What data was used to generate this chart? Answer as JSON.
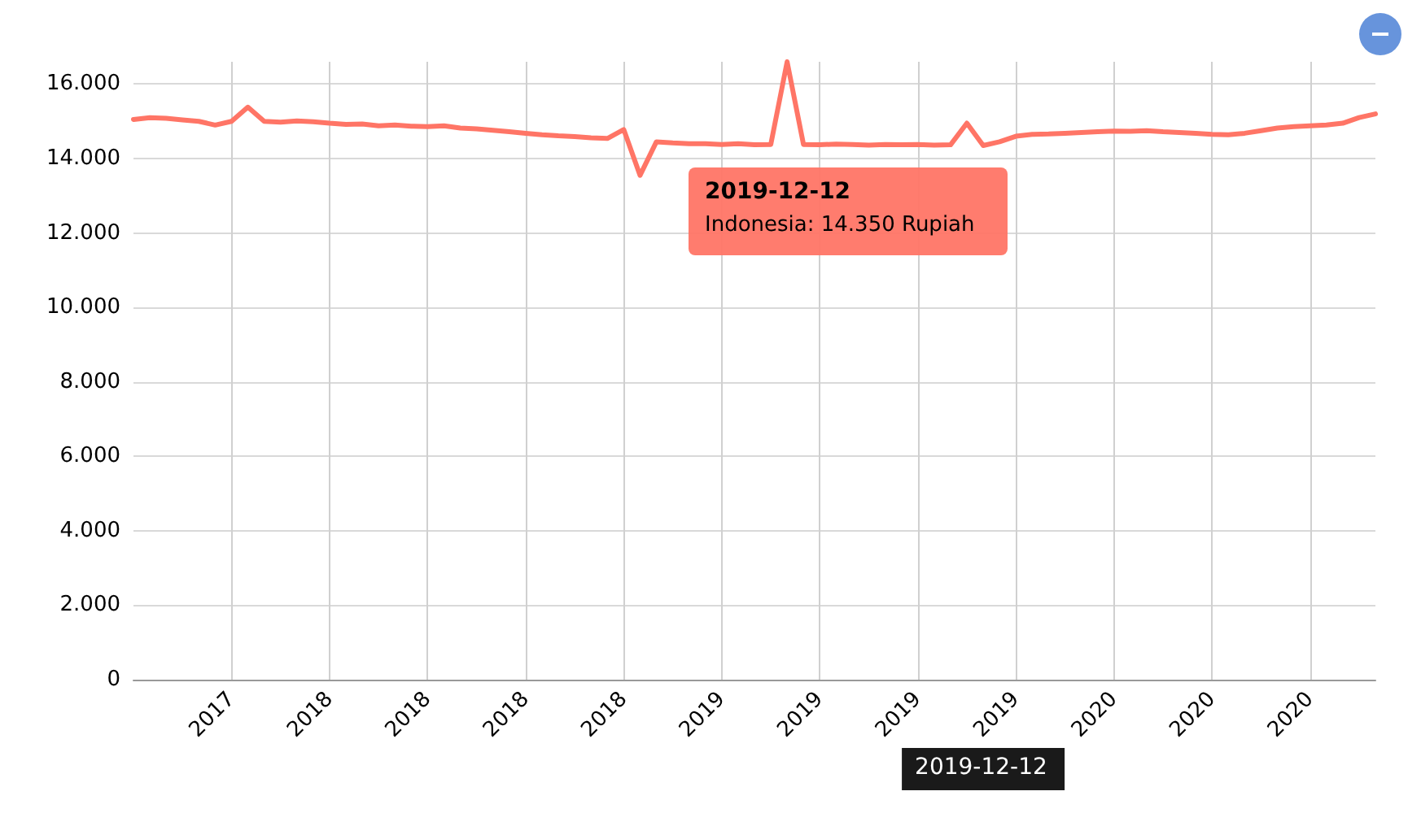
{
  "chart_data": {
    "type": "line",
    "categories": [
      null,
      null,
      null,
      null,
      null,
      null,
      "2017",
      null,
      null,
      null,
      null,
      null,
      "2018",
      null,
      null,
      null,
      null,
      null,
      "2018",
      null,
      null,
      null,
      null,
      null,
      "2018",
      null,
      null,
      null,
      null,
      null,
      "2018",
      null,
      null,
      null,
      null,
      null,
      "2019",
      null,
      null,
      null,
      null,
      null,
      "2019",
      null,
      null,
      null,
      null,
      null,
      "2019",
      null,
      null,
      null,
      null,
      null,
      "2019",
      null,
      null,
      null,
      null,
      null,
      "2020",
      null,
      null,
      null,
      null,
      null,
      "2020",
      null,
      null,
      null,
      null,
      null,
      "2020",
      null,
      null,
      null,
      null
    ],
    "series": [
      {
        "color": "#ff7566",
        "values": [
          15050,
          15100,
          15080,
          15040,
          15000,
          14900,
          15000,
          15380,
          15000,
          14980,
          15010,
          14990,
          14950,
          14920,
          14930,
          14880,
          14900,
          14870,
          14860,
          14880,
          14820,
          14800,
          14760,
          14720,
          14680,
          14640,
          14610,
          14590,
          14560,
          14540,
          14780,
          13550,
          14450,
          14420,
          14400,
          14400,
          14380,
          14400,
          14370,
          14380,
          16600,
          14380,
          14370,
          14390,
          14380,
          14360,
          14380,
          14370,
          14380,
          14360,
          14370,
          14950,
          14350,
          14450,
          14600,
          14650,
          14660,
          14680,
          14700,
          14720,
          14740,
          14730,
          14750,
          14720,
          14700,
          14680,
          14650,
          14640,
          14680,
          14750,
          14820,
          14860,
          14880,
          14900,
          14950,
          15100,
          15200
        ]
      }
    ],
    "ylim": [
      0,
      16600
    ],
    "yticks": [
      {
        "value": 0,
        "label": "0"
      },
      {
        "value": 2000,
        "label": "2.000"
      },
      {
        "value": 4000,
        "label": "4.000"
      },
      {
        "value": 6000,
        "label": "6.000"
      },
      {
        "value": 8000,
        "label": "8.000"
      },
      {
        "value": 10000,
        "label": "10.000"
      },
      {
        "value": 12000,
        "label": "12.000"
      },
      {
        "value": 14000,
        "label": "14.000"
      },
      {
        "value": 16000,
        "label": "16.000"
      }
    ],
    "grid": true,
    "marker": "none",
    "line_style": "solid",
    "annotations": [
      "2019-12-12",
      "Indonesia: 14.350 Rupiah",
      "2019-12-12"
    ]
  }
}
